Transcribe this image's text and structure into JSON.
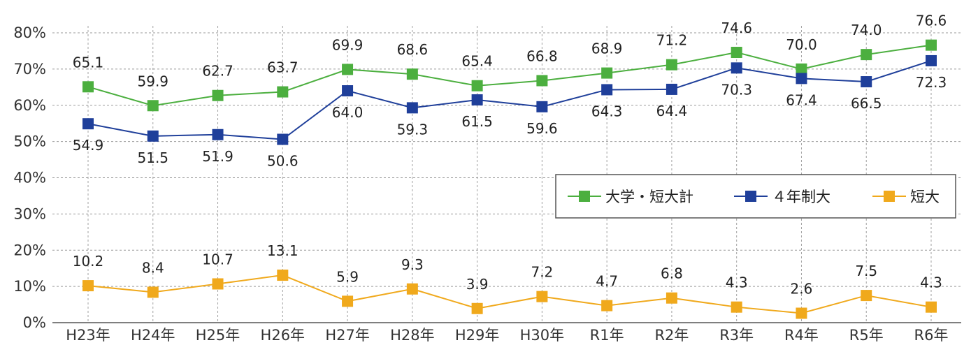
{
  "chart_data": {
    "type": "line",
    "categories": [
      "H23年",
      "H24年",
      "H25年",
      "H26年",
      "H27年",
      "H28年",
      "H29年",
      "H30年",
      "R1年",
      "R2年",
      "R3年",
      "R4年",
      "R5年",
      "R6年"
    ],
    "ylim": [
      0,
      80
    ],
    "yticks": [
      0,
      10,
      20,
      30,
      40,
      50,
      60,
      70,
      80
    ],
    "ytick_format": "%",
    "grid": true,
    "legend_position": "middle-right",
    "series": [
      {
        "name": "大学・短大計",
        "color": "#4caf3f",
        "values": [
          65.1,
          59.9,
          62.7,
          63.7,
          69.9,
          68.6,
          65.4,
          66.8,
          68.9,
          71.2,
          74.6,
          70.0,
          74.0,
          76.6
        ],
        "labels": [
          "65.1",
          "59.9",
          "62.7",
          "63.7",
          "69.9",
          "68.6",
          "65.4",
          "66.8",
          "68.9",
          "71.2",
          "74.6",
          "70.0",
          "74.0",
          "76.6"
        ],
        "label_position": "above"
      },
      {
        "name": "４年制大",
        "color": "#1f3f9a",
        "values": [
          54.9,
          51.5,
          51.9,
          50.6,
          64.0,
          59.3,
          61.5,
          59.6,
          64.3,
          64.4,
          70.3,
          67.4,
          66.5,
          72.3
        ],
        "labels": [
          "54.9",
          "51.5",
          "51.9",
          "50.6",
          "64.0",
          "59.3",
          "61.5",
          "59.6",
          "64.3",
          "64.4",
          "70.3",
          "67.4",
          "66.5",
          "72.3"
        ],
        "label_position": "below"
      },
      {
        "name": "短大",
        "color": "#f0a91c",
        "values": [
          10.2,
          8.4,
          10.7,
          13.1,
          5.9,
          9.3,
          3.9,
          7.2,
          4.7,
          6.8,
          4.3,
          2.6,
          7.5,
          4.3
        ],
        "labels": [
          "10.2",
          "8.4",
          "10.7",
          "13.1",
          "5.9",
          "9.3",
          "3.9",
          "7.2",
          "4.7",
          "6.8",
          "4.3",
          "2.6",
          "7.5",
          "4.3"
        ],
        "label_position": "above"
      }
    ]
  }
}
